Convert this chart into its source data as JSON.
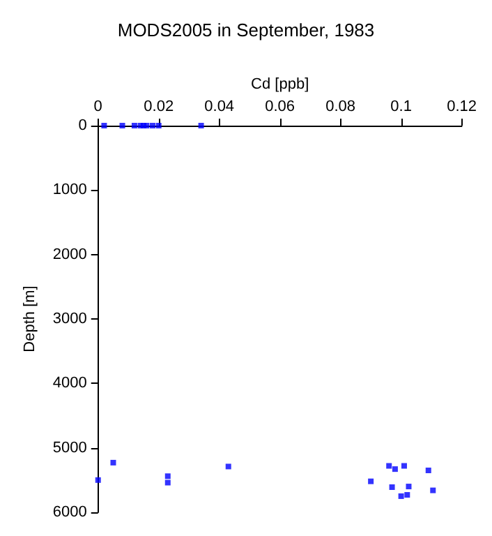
{
  "chart_data": {
    "type": "scatter",
    "title": "MODS2005 in September, 1983",
    "xlabel": "Cd [ppb]",
    "ylabel": "Depth [m]",
    "x": [
      0.002,
      0.008,
      0.012,
      0.014,
      0.015,
      0.016,
      0.018,
      0.02,
      0.034,
      0.0,
      0.005,
      0.023,
      0.023,
      0.043,
      0.09,
      0.096,
      0.098,
      0.101,
      0.097,
      0.1025,
      0.1,
      0.102,
      0.109,
      0.1105
    ],
    "values": [
      0,
      0,
      0,
      0,
      0,
      0,
      0,
      0,
      0,
      5500,
      5230,
      5440,
      5540,
      5290,
      5520,
      5280,
      5330,
      5280,
      5610,
      5600,
      5750,
      5730,
      5350,
      5660
    ],
    "color": "#0000ff",
    "marker": "square",
    "grid": false,
    "xlim": [
      0,
      0.12
    ],
    "xticks": [
      0,
      0.02,
      0.04,
      0.06,
      0.08,
      0.1,
      0.12
    ],
    "ylim": [
      6000,
      0
    ],
    "yticks": [
      0,
      1000,
      2000,
      3000,
      4000,
      5000,
      6000
    ]
  }
}
